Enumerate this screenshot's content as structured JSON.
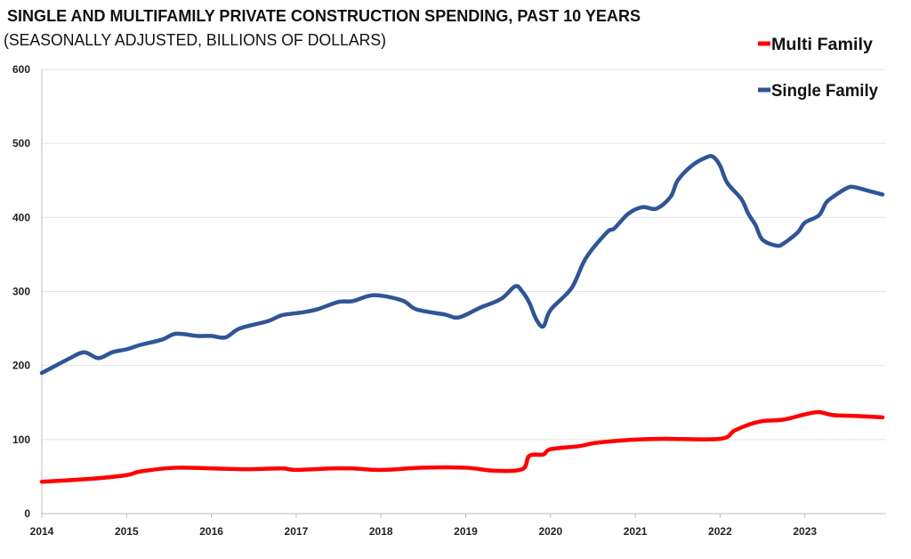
{
  "chart_data": {
    "type": "line",
    "title": "SINGLE AND MULTIFAMILY PRIVATE CONSTRUCTION SPENDING, PAST 10 YEARS",
    "subtitle": "(SEASONALLY ADJUSTED, BILLIONS OF DOLLARS)",
    "xlabel": "",
    "ylabel": "",
    "ylim": [
      0,
      600
    ],
    "xlim": [
      "2014-01",
      "2023-12"
    ],
    "yticks": [
      "0",
      "100",
      "200",
      "300",
      "400",
      "500",
      "600"
    ],
    "xticks": [
      "2014",
      "2015",
      "2016",
      "2017",
      "2018",
      "2019",
      "2020",
      "2021",
      "2022",
      "2023"
    ],
    "grid": "horizontal",
    "legend": "top-right",
    "series": [
      {
        "name": "Multi Family",
        "color": "#ff0000",
        "points": [
          [
            "2014-01",
            43
          ],
          [
            "2014-08",
            47
          ],
          [
            "2015-01",
            52
          ],
          [
            "2015-03",
            57
          ],
          [
            "2015-08",
            62
          ],
          [
            "2016-01",
            61
          ],
          [
            "2016-06",
            60
          ],
          [
            "2016-11",
            61
          ],
          [
            "2017-01",
            59
          ],
          [
            "2017-06",
            61
          ],
          [
            "2017-09",
            61
          ],
          [
            "2018-01",
            59
          ],
          [
            "2018-07",
            62
          ],
          [
            "2019-01",
            62
          ],
          [
            "2019-05",
            58
          ],
          [
            "2019-09",
            60
          ],
          [
            "2019-10",
            78
          ],
          [
            "2019-12",
            80
          ],
          [
            "2020-01",
            87
          ],
          [
            "2020-05",
            91
          ],
          [
            "2020-07",
            95
          ],
          [
            "2020-10",
            98
          ],
          [
            "2021-01",
            100
          ],
          [
            "2021-05",
            101
          ],
          [
            "2022-01",
            101
          ],
          [
            "2022-03",
            112
          ],
          [
            "2022-05",
            120
          ],
          [
            "2022-07",
            125
          ],
          [
            "2022-10",
            127
          ],
          [
            "2023-01",
            134
          ],
          [
            "2023-03",
            137
          ],
          [
            "2023-05",
            133
          ],
          [
            "2023-08",
            132
          ],
          [
            "2023-12",
            130
          ]
        ]
      },
      {
        "name": "Single Family",
        "color": "#2f5597",
        "points": [
          [
            "2014-01",
            190
          ],
          [
            "2014-03",
            200
          ],
          [
            "2014-05",
            210
          ],
          [
            "2014-07",
            218
          ],
          [
            "2014-09",
            210
          ],
          [
            "2014-11",
            218
          ],
          [
            "2015-01",
            222
          ],
          [
            "2015-03",
            228
          ],
          [
            "2015-06",
            235
          ],
          [
            "2015-08",
            243
          ],
          [
            "2015-11",
            240
          ],
          [
            "2016-01",
            240
          ],
          [
            "2016-03",
            238
          ],
          [
            "2016-05",
            250
          ],
          [
            "2016-09",
            260
          ],
          [
            "2016-11",
            268
          ],
          [
            "2017-02",
            272
          ],
          [
            "2017-04",
            276
          ],
          [
            "2017-07",
            286
          ],
          [
            "2017-09",
            287
          ],
          [
            "2017-12",
            295
          ],
          [
            "2018-04",
            288
          ],
          [
            "2018-06",
            276
          ],
          [
            "2018-10",
            269
          ],
          [
            "2018-12",
            265
          ],
          [
            "2019-03",
            278
          ],
          [
            "2019-06",
            290
          ],
          [
            "2019-08",
            307
          ],
          [
            "2019-09",
            300
          ],
          [
            "2019-10",
            285
          ],
          [
            "2019-11",
            262
          ],
          [
            "2019-12",
            253
          ],
          [
            "2020-01",
            275
          ],
          [
            "2020-04",
            305
          ],
          [
            "2020-06",
            345
          ],
          [
            "2020-09",
            380
          ],
          [
            "2020-10",
            385
          ],
          [
            "2020-12",
            405
          ],
          [
            "2021-02",
            414
          ],
          [
            "2021-04",
            412
          ],
          [
            "2021-06",
            428
          ],
          [
            "2021-07",
            450
          ],
          [
            "2021-09",
            470
          ],
          [
            "2021-11",
            481
          ],
          [
            "2021-12",
            482
          ],
          [
            "2022-01",
            470
          ],
          [
            "2022-02",
            447
          ],
          [
            "2022-04",
            425
          ],
          [
            "2022-05",
            405
          ],
          [
            "2022-06",
            390
          ],
          [
            "2022-07",
            370
          ],
          [
            "2022-09",
            362
          ],
          [
            "2022-10",
            365
          ],
          [
            "2022-12",
            380
          ],
          [
            "2023-01",
            393
          ],
          [
            "2023-03",
            403
          ],
          [
            "2023-04",
            420
          ],
          [
            "2023-05",
            428
          ],
          [
            "2023-07",
            440
          ],
          [
            "2023-08",
            441
          ],
          [
            "2023-10",
            436
          ],
          [
            "2023-12",
            431
          ]
        ]
      }
    ]
  }
}
